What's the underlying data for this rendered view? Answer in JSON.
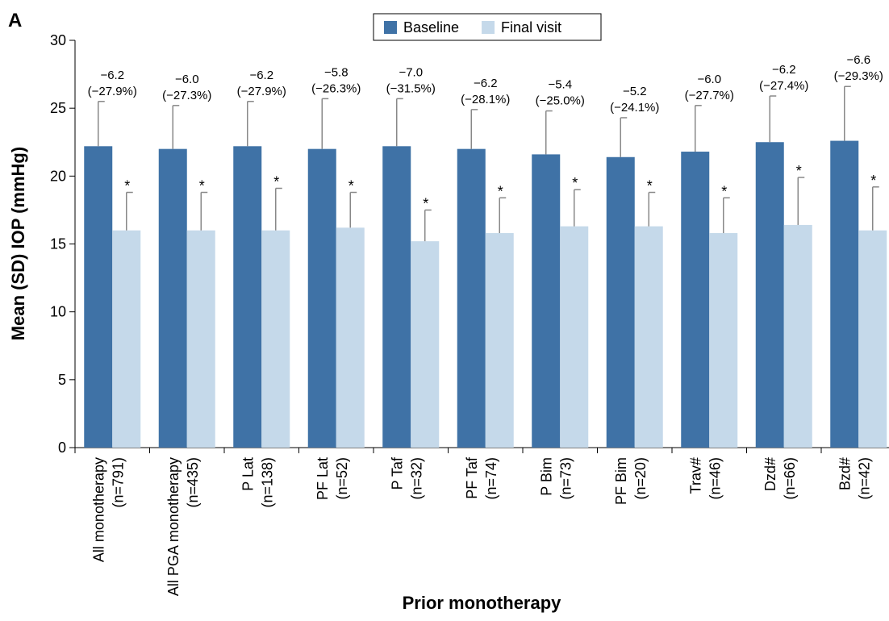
{
  "chart_data": {
    "type": "bar",
    "panel_label": "A",
    "x_label": "Prior monotherapy",
    "y_label": "Mean (SD) IOP (mmHg)",
    "categories": [
      [
        "All monotherapy",
        "(n=791)"
      ],
      [
        "All PGA monotherapy",
        "(n=435)"
      ],
      [
        "P Lat",
        "(n=138)"
      ],
      [
        "PF Lat",
        "(n=52)"
      ],
      [
        "P Taf",
        "(n=32)"
      ],
      [
        "PF Taf",
        "(n=74)"
      ],
      [
        "P Bim",
        "(n=73)"
      ],
      [
        "PF Bim",
        "(n=20)"
      ],
      [
        "Trav#",
        "(n=46)"
      ],
      [
        "Dzd#",
        "(n=66)"
      ],
      [
        "Bzd#",
        "(n=42)"
      ]
    ],
    "series": [
      {
        "name": "Baseline",
        "color": "#3f72a6",
        "values": [
          22.2,
          22.0,
          22.2,
          22.0,
          22.2,
          22.0,
          21.6,
          21.4,
          21.8,
          22.5,
          22.6
        ],
        "errors": [
          3.3,
          3.2,
          3.3,
          3.7,
          3.5,
          2.9,
          3.2,
          2.9,
          3.4,
          3.4,
          4.0
        ]
      },
      {
        "name": "Final visit",
        "color": "#c5d9ea",
        "values": [
          16.0,
          16.0,
          16.0,
          16.2,
          15.2,
          15.8,
          16.3,
          16.3,
          15.8,
          16.4,
          16.0
        ],
        "errors": [
          2.8,
          2.8,
          3.1,
          2.6,
          2.3,
          2.6,
          2.7,
          2.5,
          2.6,
          3.5,
          3.2
        ],
        "significance": [
          "*",
          "*",
          "*",
          "*",
          "*",
          "*",
          "*",
          "*",
          "*",
          "*",
          "*"
        ]
      }
    ],
    "change_labels": [
      [
        "−6.2",
        "(−27.9%)"
      ],
      [
        "−6.0",
        "(−27.3%)"
      ],
      [
        "−6.2",
        "(−27.9%)"
      ],
      [
        "−5.8",
        "(−26.3%)"
      ],
      [
        "−7.0",
        "(−31.5%)"
      ],
      [
        "−6.2",
        "(−28.1%)"
      ],
      [
        "−5.4",
        "(−25.0%)"
      ],
      [
        "−5.2",
        "(−24.1%)"
      ],
      [
        "−6.0",
        "(−27.7%)"
      ],
      [
        "−6.2",
        "(−27.4%)"
      ],
      [
        "−6.6",
        "(−29.3%)"
      ]
    ],
    "ylim": [
      0,
      30
    ],
    "yticks": [
      0,
      5,
      10,
      15,
      20,
      25,
      30
    ],
    "legend": "top"
  }
}
